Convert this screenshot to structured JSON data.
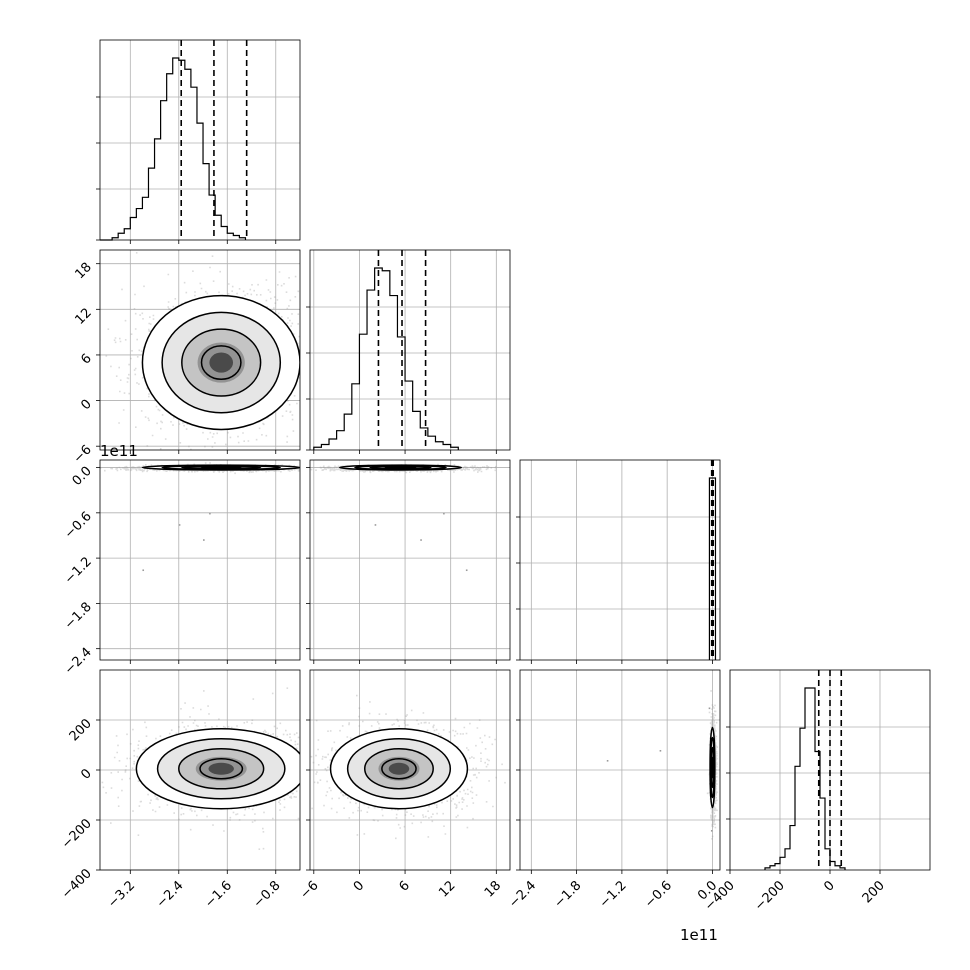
{
  "chart_data": {
    "type": "corner",
    "offset_texts": {
      "panel_2_0": "1e11",
      "bottom_p2": "1e11"
    },
    "axes": [
      {
        "param": "p0",
        "lim": [
          -3.7,
          -0.4
        ],
        "ticks": [
          -3.2,
          -2.4,
          -1.6,
          -0.8
        ],
        "tick_labels": [
          "−3.2",
          "−2.4",
          "−1.6",
          "−0.8"
        ]
      },
      {
        "param": "p1",
        "lim": [
          -6.5,
          19.8
        ],
        "ticks": [
          -6,
          0,
          6,
          12,
          18
        ],
        "tick_labels": [
          "−6",
          "0",
          "6",
          "12",
          "18"
        ]
      },
      {
        "param": "p2 (×1e11)",
        "lim": [
          -2.55,
          0.1
        ],
        "ticks": [
          -2.4,
          -1.8,
          -1.2,
          -0.6,
          0.0
        ],
        "tick_labels": [
          "−2.4",
          "−1.8",
          "−1.2",
          "−0.6",
          "0.0"
        ]
      },
      {
        "param": "p3",
        "lim": [
          -400,
          400
        ],
        "ticks": [
          -400,
          -200,
          0,
          200
        ],
        "tick_labels": [
          "−400",
          "−200",
          "0",
          "200"
        ]
      }
    ],
    "y_axes": [
      {
        "row": 1,
        "ticks": [
          -6,
          0,
          6,
          12,
          18
        ],
        "tick_labels": [
          "−6",
          "0",
          "6",
          "12",
          "18"
        ]
      },
      {
        "row": 2,
        "ticks": [
          -2.4,
          -1.8,
          -1.2,
          -0.6,
          0.0
        ],
        "tick_labels": [
          "−2.4",
          "−1.8",
          "−1.2",
          "−0.6",
          "0.0"
        ]
      },
      {
        "row": 3,
        "ticks": [
          -400,
          -200,
          0,
          200
        ],
        "tick_labels": [
          "−400",
          "−200",
          "0",
          "200"
        ]
      }
    ],
    "histograms": [
      {
        "param": "p0",
        "bin_edges_start": -3.7,
        "bin_width": 0.1,
        "counts": [
          0,
          0,
          1,
          3,
          5,
          10,
          14,
          19,
          32,
          45,
          62,
          74,
          81,
          80,
          76,
          68,
          52,
          34,
          20,
          11,
          6,
          3,
          2,
          1
        ],
        "quantiles": [
          -2.36,
          -1.82,
          -1.28
        ]
      },
      {
        "param": "p1",
        "bin_edges_start": -6.0,
        "bin_width": 1.0,
        "counts": [
          1,
          2,
          4,
          7,
          13,
          24,
          42,
          58,
          66,
          65,
          56,
          41,
          25,
          14,
          8,
          5,
          3,
          2,
          1
        ],
        "quantiles": [
          2.5,
          5.6,
          8.7
        ]
      },
      {
        "param": "p2",
        "bins": [
          {
            "from": -0.04,
            "to": 0.04,
            "count": 100
          }
        ],
        "quantiles": [
          -0.01,
          0.0,
          0.01
        ]
      },
      {
        "param": "p3",
        "bin_edges_start": -260,
        "bin_width": 20,
        "counts": [
          1,
          2,
          3,
          6,
          10,
          21,
          49,
          67,
          86,
          86,
          56,
          34,
          10,
          4,
          2,
          1
        ],
        "quantiles": [
          -45,
          0,
          45
        ]
      }
    ],
    "scatter_2d": [
      {
        "x": "p0",
        "y": "p1",
        "center": [
          -1.7,
          5.0
        ],
        "sd": [
          0.65,
          4.4
        ]
      },
      {
        "x": "p0",
        "y": "p2",
        "center": [
          -1.7,
          0.0
        ],
        "sd": [
          0.65,
          0.004
        ]
      },
      {
        "x": "p1",
        "y": "p2",
        "center": [
          5.4,
          0.0
        ],
        "sd": [
          4.0,
          0.004
        ]
      },
      {
        "x": "p0",
        "y": "p3",
        "center": [
          -1.7,
          5.0
        ],
        "sd": [
          0.7,
          80
        ]
      },
      {
        "x": "p1",
        "y": "p3",
        "center": [
          5.2,
          5.0
        ],
        "sd": [
          4.5,
          80
        ]
      },
      {
        "x": "p2",
        "y": "p3",
        "center": [
          0.0,
          10.0
        ],
        "sd": [
          0.004,
          80
        ]
      }
    ],
    "grid": true
  }
}
